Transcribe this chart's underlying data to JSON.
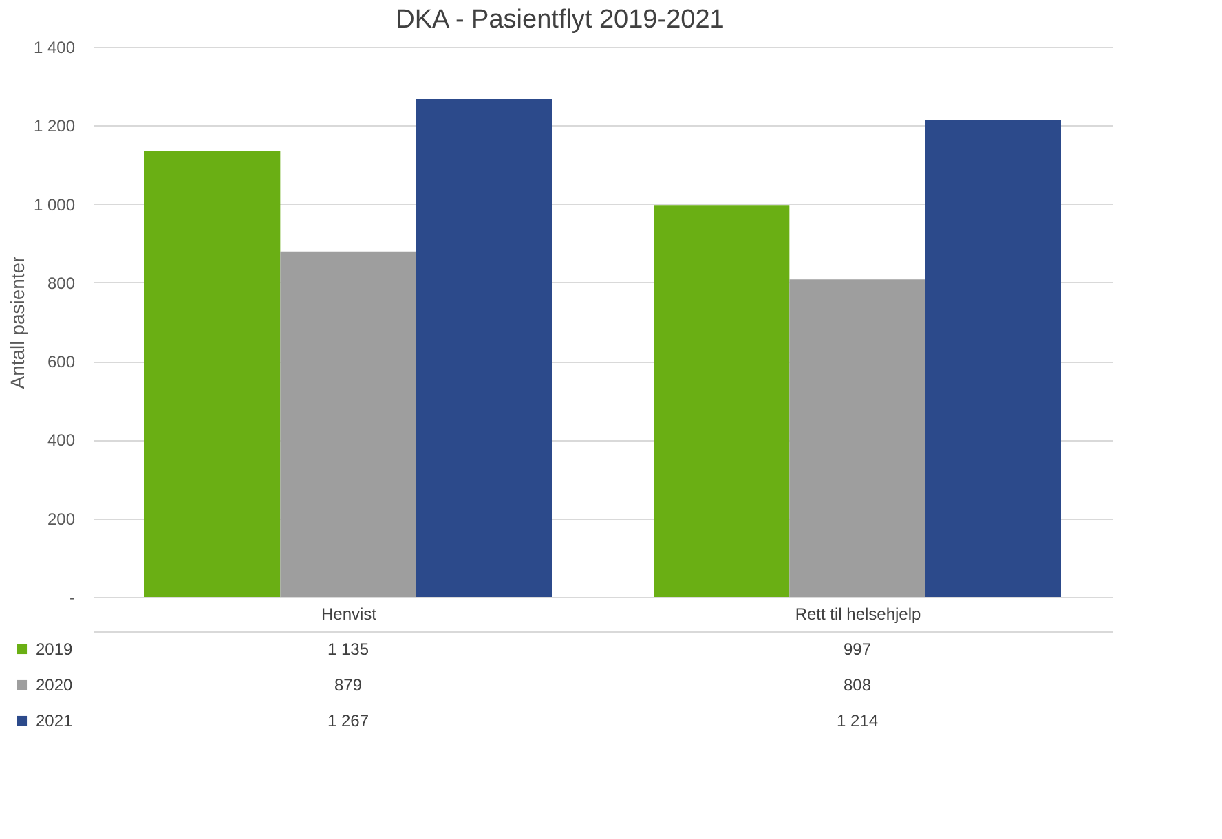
{
  "chart_data": {
    "type": "bar",
    "title": "DKA - Pasientflyt 2019-2021",
    "ylabel": "Antall pasienter",
    "categories": [
      "Henvist",
      "Rett til helsehjelp"
    ],
    "series": [
      {
        "name": "2019",
        "color": "#6aaf14",
        "values": [
          1135,
          997
        ]
      },
      {
        "name": "2020",
        "color": "#9e9e9e",
        "values": [
          879,
          808
        ]
      },
      {
        "name": "2021",
        "color": "#2c4a8b",
        "values": [
          1267,
          1214
        ]
      }
    ],
    "ylim": [
      0,
      1400
    ],
    "yticks": [
      {
        "value": 0,
        "label": "-"
      },
      200,
      400,
      600,
      800,
      {
        "value": 1000,
        "label": "1 000"
      },
      {
        "value": 1200,
        "label": "1 200"
      },
      {
        "value": 1400,
        "label": "1 400"
      }
    ],
    "grid": "y",
    "data_labels": true,
    "legend": "bottom left"
  }
}
